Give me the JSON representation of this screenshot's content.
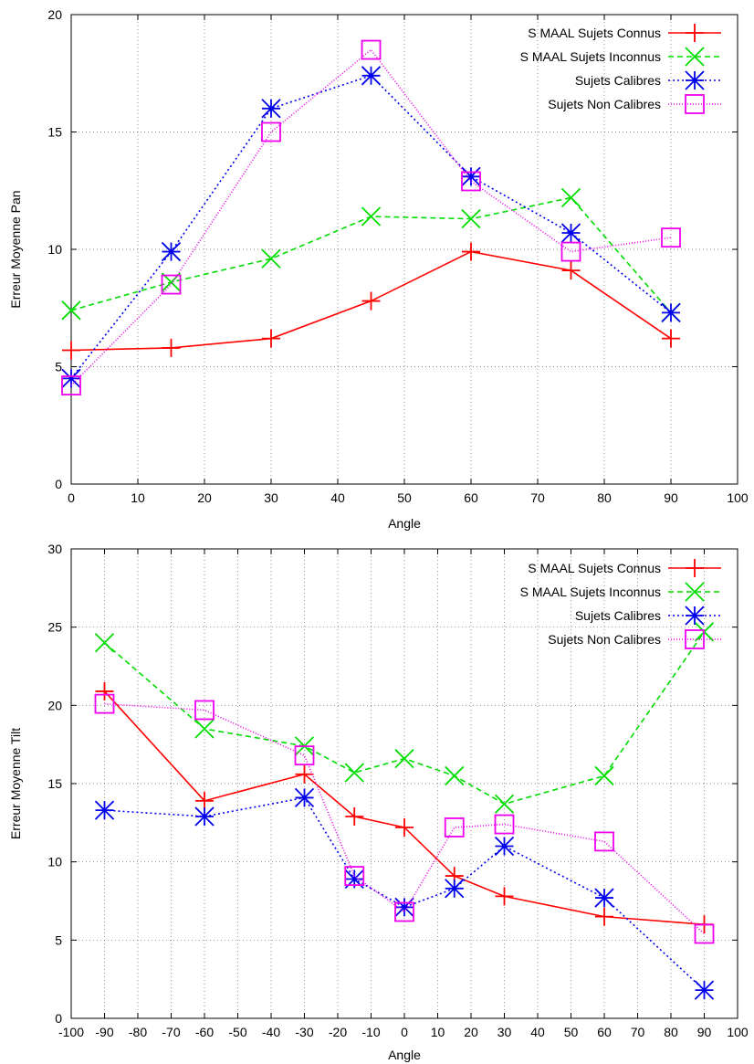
{
  "colors": {
    "s_maal_connus": "#ff0000",
    "s_maal_inconnus": "#00dd00",
    "calibres": "#0000ee",
    "non_calibres": "#ee00ee"
  },
  "chart_data": [
    {
      "type": "line",
      "title": "",
      "xlabel": "Angle",
      "ylabel": "Erreur Moyenne Pan",
      "xlim": [
        0,
        100
      ],
      "ylim": [
        0,
        20
      ],
      "xticks": [
        "0",
        "10",
        "20",
        "30",
        "40",
        "50",
        "60",
        "70",
        "80",
        "90",
        "100"
      ],
      "yticks": [
        "0",
        "5",
        "10",
        "15",
        "20"
      ],
      "grid": true,
      "legend_position": "top-right",
      "series": [
        {
          "name": "S MAAL Sujets Connus",
          "marker": "plus",
          "dash": "solid",
          "x": [
            0,
            15,
            30,
            45,
            60,
            75,
            90
          ],
          "y": [
            5.7,
            5.8,
            6.2,
            7.8,
            9.9,
            9.1,
            6.2
          ]
        },
        {
          "name": "S MAAL Sujets Inconnus",
          "marker": "cross",
          "dash": "dashed",
          "x": [
            0,
            15,
            30,
            45,
            60,
            75,
            90
          ],
          "y": [
            7.4,
            8.6,
            9.6,
            11.4,
            11.3,
            12.2,
            7.3
          ]
        },
        {
          "name": "Sujets Calibres",
          "marker": "star",
          "dash": "dotted",
          "x": [
            0,
            15,
            30,
            45,
            60,
            75,
            90
          ],
          "y": [
            4.5,
            9.9,
            16.0,
            17.4,
            13.1,
            10.7,
            7.3
          ]
        },
        {
          "name": "Sujets Non Calibres",
          "marker": "square",
          "dash": "finedot",
          "x": [
            0,
            15,
            30,
            45,
            60,
            75,
            90
          ],
          "y": [
            4.2,
            8.5,
            15.0,
            18.5,
            12.9,
            9.9,
            10.5
          ]
        }
      ]
    },
    {
      "type": "line",
      "title": "",
      "xlabel": "Angle",
      "ylabel": "Erreur Moyenne Tilt",
      "xlim": [
        -100,
        100
      ],
      "ylim": [
        0,
        30
      ],
      "xticks": [
        "-100",
        "-90",
        "-80",
        "-70",
        "-60",
        "-50",
        "-40",
        "-30",
        "-20",
        "-10",
        "0",
        "10",
        "20",
        "30",
        "40",
        "50",
        "60",
        "70",
        "80",
        "90",
        "100"
      ],
      "yticks": [
        "0",
        "5",
        "10",
        "15",
        "20",
        "25",
        "30"
      ],
      "grid": true,
      "legend_position": "top-right",
      "series": [
        {
          "name": "S MAAL Sujets Connus",
          "marker": "plus",
          "dash": "solid",
          "x": [
            -90,
            -60,
            -30,
            -15,
            0,
            15,
            30,
            60,
            90
          ],
          "y": [
            20.9,
            13.9,
            15.6,
            12.9,
            12.2,
            9.1,
            7.8,
            6.5,
            6.0
          ]
        },
        {
          "name": "S MAAL Sujets Inconnus",
          "marker": "cross",
          "dash": "dashed",
          "x": [
            -90,
            -60,
            -30,
            -15,
            0,
            15,
            30,
            60,
            90
          ],
          "y": [
            24.0,
            18.5,
            17.4,
            15.7,
            16.6,
            15.5,
            13.7,
            15.5,
            24.7
          ]
        },
        {
          "name": "Sujets Calibres",
          "marker": "star",
          "dash": "dotted",
          "x": [
            -90,
            -60,
            -30,
            -15,
            0,
            15,
            30,
            60,
            90
          ],
          "y": [
            13.3,
            12.9,
            14.1,
            8.9,
            7.1,
            8.3,
            11.0,
            7.7,
            1.8
          ]
        },
        {
          "name": "Sujets Non Calibres",
          "marker": "square",
          "dash": "finedot",
          "x": [
            -90,
            -60,
            -30,
            -15,
            0,
            15,
            30,
            60,
            90
          ],
          "y": [
            20.1,
            19.7,
            16.8,
            9.1,
            6.8,
            12.2,
            12.4,
            11.3,
            5.4
          ]
        }
      ]
    }
  ]
}
